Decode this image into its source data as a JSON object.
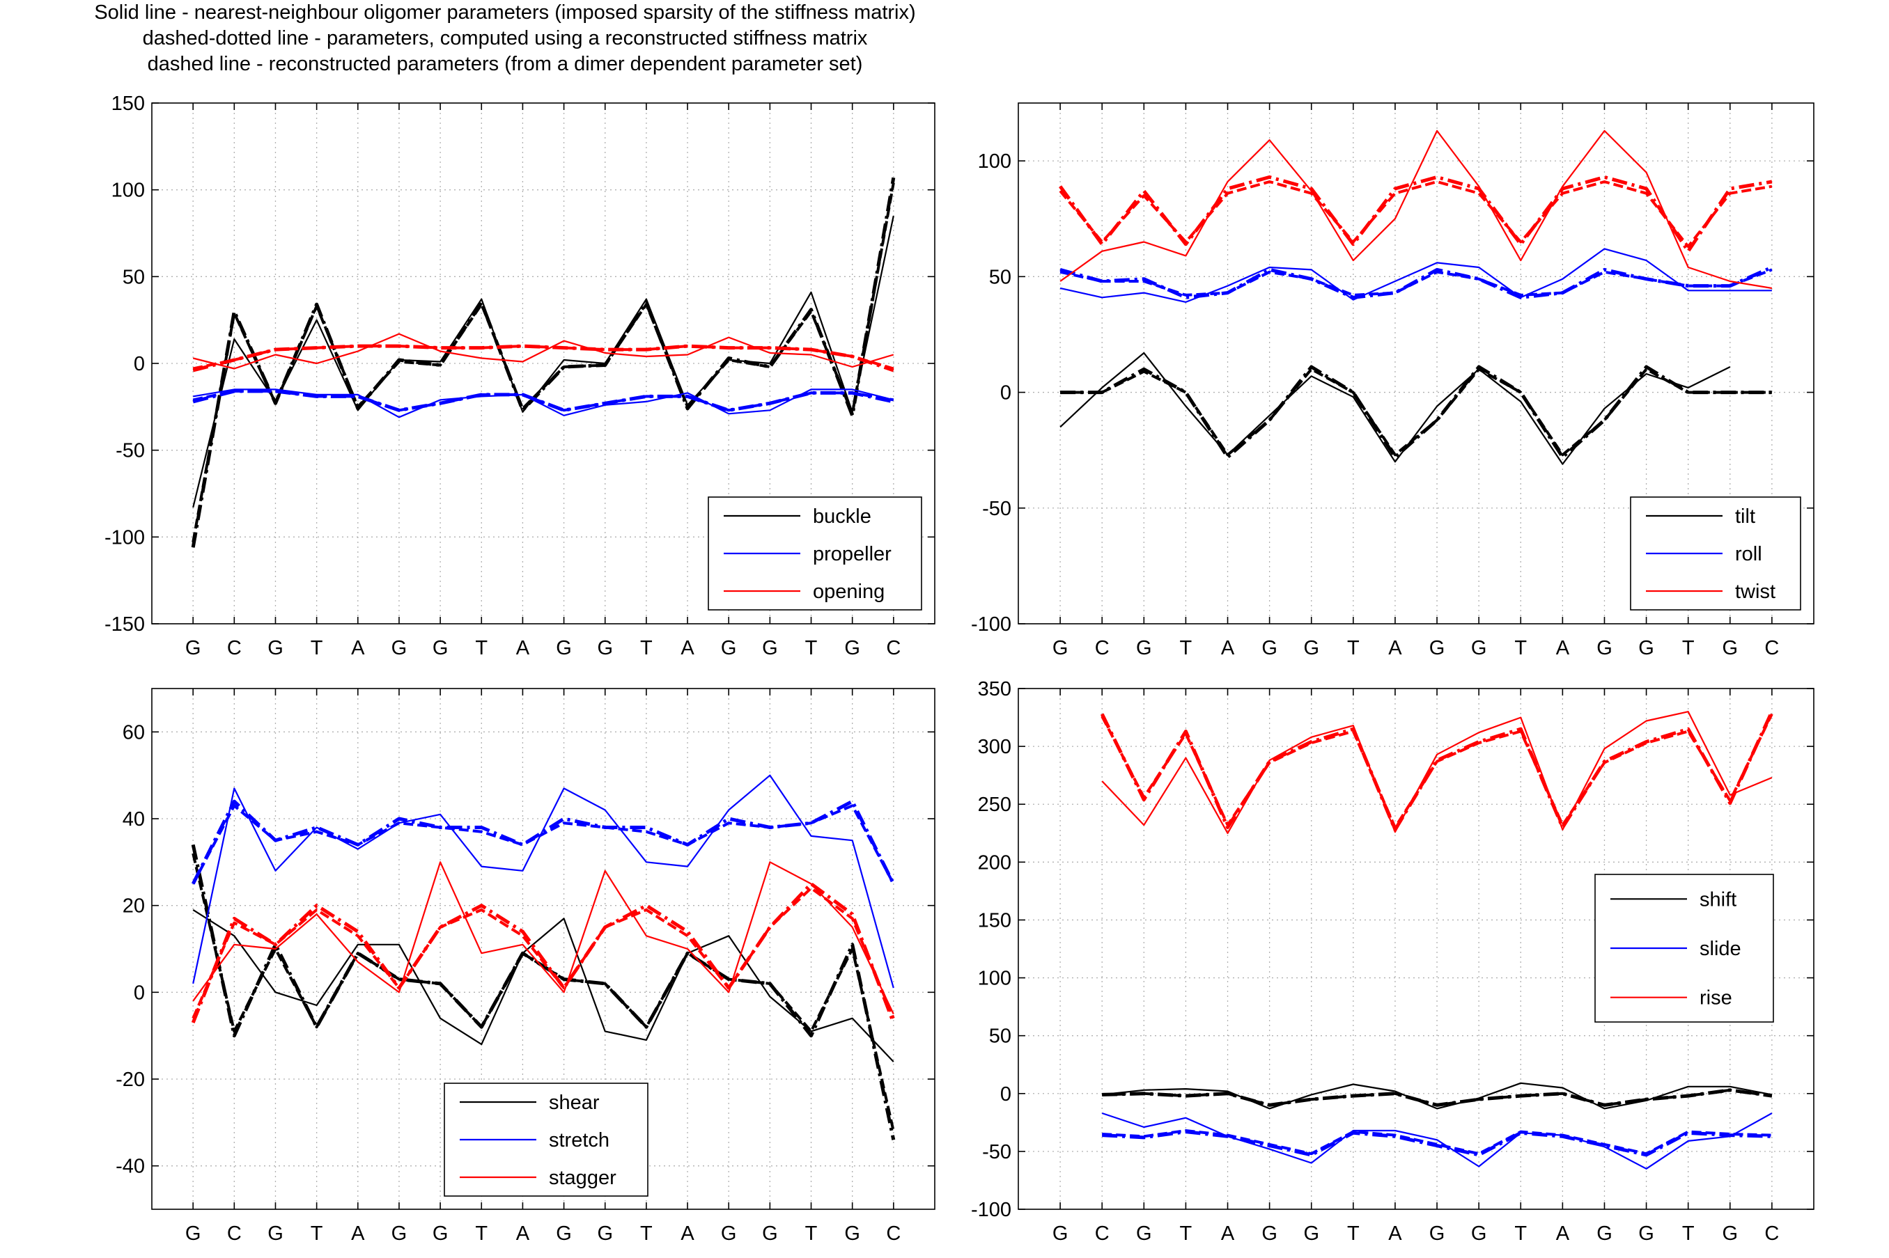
{
  "title_lines": [
    "Solid line - nearest-neighbour oligomer parameters (imposed sparsity of the stiffness matrix)",
    "dashed-dotted line - parameters, computed using a reconstructed stiffness matrix",
    "dashed line - reconstructed parameters (from a dimer dependent parameter set)"
  ],
  "colors": {
    "black": "#000000",
    "blue": "#0000ff",
    "red": "#ff0000",
    "grid": "#b0b0b0"
  },
  "chart_data": [
    {
      "type": "line",
      "panel": "top-left",
      "categories": [
        "G",
        "C",
        "G",
        "T",
        "A",
        "G",
        "G",
        "T",
        "A",
        "G",
        "G",
        "T",
        "A",
        "G",
        "G",
        "T",
        "G",
        "C"
      ],
      "ylim": [
        -150,
        150
      ],
      "yticks": [
        -150,
        -100,
        -50,
        0,
        50,
        100,
        150
      ],
      "grid": true,
      "legend_position": "bottom-right",
      "series": [
        {
          "name": "buckle",
          "color": "black",
          "style": "solid",
          "values": [
            -83,
            14,
            -22,
            25,
            -27,
            2,
            1,
            37,
            -28,
            2,
            0,
            37,
            -24,
            2,
            0,
            41,
            -28,
            85
          ]
        },
        {
          "name": "",
          "color": "black",
          "style": "dashdot",
          "values": [
            -106,
            30,
            -23,
            34,
            -26,
            2,
            -1,
            35,
            -27,
            -2,
            -1,
            35,
            -26,
            3,
            -2,
            31,
            -30,
            107
          ]
        },
        {
          "name": "",
          "color": "black",
          "style": "dashed",
          "values": [
            -103,
            29,
            -23,
            33,
            -25,
            1,
            -1,
            34,
            -26,
            -2,
            -1,
            34,
            -25,
            2,
            -2,
            30,
            -29,
            104
          ]
        },
        {
          "name": "propeller",
          "color": "blue",
          "style": "solid",
          "values": [
            -19,
            -15,
            -15,
            -18,
            -18,
            -31,
            -21,
            -19,
            -18,
            -30,
            -24,
            -22,
            -17,
            -29,
            -27,
            -15,
            -15,
            -21
          ]
        },
        {
          "name": "",
          "color": "blue",
          "style": "dashdot",
          "values": [
            -22,
            -16,
            -16,
            -19,
            -19,
            -27,
            -23,
            -18,
            -18,
            -27,
            -23,
            -19,
            -19,
            -27,
            -23,
            -17,
            -17,
            -22
          ]
        },
        {
          "name": "",
          "color": "blue",
          "style": "dashed",
          "values": [
            -21,
            -16,
            -16,
            -19,
            -19,
            -27,
            -23,
            -18,
            -18,
            -27,
            -23,
            -19,
            -19,
            -27,
            -23,
            -17,
            -17,
            -21
          ]
        },
        {
          "name": "opening",
          "color": "red",
          "style": "solid",
          "values": [
            3,
            -3,
            5,
            0,
            7,
            17,
            7,
            3,
            1,
            13,
            6,
            4,
            5,
            15,
            6,
            5,
            -2,
            5
          ]
        },
        {
          "name": "",
          "color": "red",
          "style": "dashdot",
          "values": [
            -4,
            2,
            8,
            9,
            10,
            10,
            9,
            9,
            10,
            9,
            8,
            8,
            10,
            9,
            9,
            8,
            4,
            -4
          ]
        },
        {
          "name": "",
          "color": "red",
          "style": "dashed",
          "values": [
            -3,
            2,
            8,
            9,
            10,
            10,
            9,
            9,
            10,
            9,
            8,
            8,
            10,
            9,
            9,
            8,
            4,
            -3
          ]
        }
      ]
    },
    {
      "type": "line",
      "panel": "top-right",
      "categories": [
        "G",
        "C",
        "G",
        "T",
        "A",
        "G",
        "G",
        "T",
        "A",
        "G",
        "G",
        "T",
        "A",
        "G",
        "G",
        "T",
        "G",
        "C"
      ],
      "ylim": [
        -100,
        125
      ],
      "yticks": [
        -100,
        -50,
        0,
        50,
        100
      ],
      "grid": true,
      "legend_position": "bottom-right",
      "series": [
        {
          "name": "tilt",
          "color": "black",
          "style": "solid",
          "values": [
            -15,
            2,
            17,
            -6,
            -27,
            -10,
            7,
            -2,
            -30,
            -6,
            10,
            -4,
            -31,
            -7,
            8,
            2,
            11,
            null
          ]
        },
        {
          "name": "",
          "color": "black",
          "style": "dashdot",
          "values": [
            0,
            0,
            10,
            0,
            -28,
            -12,
            11,
            0,
            -28,
            -12,
            11,
            0,
            -28,
            -12,
            11,
            0,
            0,
            0
          ]
        },
        {
          "name": "",
          "color": "black",
          "style": "dashed",
          "values": [
            0,
            0,
            9,
            0,
            -27,
            -12,
            10,
            0,
            -27,
            -12,
            10,
            0,
            -27,
            -12,
            10,
            0,
            0,
            0
          ]
        },
        {
          "name": "roll",
          "color": "blue",
          "style": "solid",
          "values": [
            45,
            41,
            43,
            39,
            46,
            54,
            53,
            40,
            48,
            56,
            54,
            41,
            49,
            62,
            57,
            44,
            44,
            44
          ]
        },
        {
          "name": "",
          "color": "blue",
          "style": "dashdot",
          "values": [
            53,
            48,
            49,
            41,
            43,
            53,
            49,
            41,
            43,
            53,
            49,
            41,
            43,
            53,
            49,
            46,
            46,
            54
          ]
        },
        {
          "name": "",
          "color": "blue",
          "style": "dashed",
          "values": [
            52,
            48,
            48,
            42,
            43,
            52,
            49,
            42,
            43,
            52,
            49,
            42,
            43,
            52,
            49,
            46,
            46,
            53
          ]
        },
        {
          "name": "twist",
          "color": "red",
          "style": "solid",
          "values": [
            48,
            61,
            65,
            59,
            91,
            109,
            87,
            57,
            75,
            113,
            89,
            57,
            89,
            113,
            95,
            54,
            48,
            45
          ]
        },
        {
          "name": "",
          "color": "red",
          "style": "dashdot",
          "values": [
            89,
            64,
            87,
            64,
            88,
            93,
            88,
            64,
            88,
            93,
            88,
            64,
            88,
            93,
            88,
            61,
            88,
            91
          ]
        },
        {
          "name": "",
          "color": "red",
          "style": "dashed",
          "values": [
            87,
            65,
            85,
            65,
            86,
            91,
            86,
            65,
            86,
            91,
            86,
            65,
            86,
            91,
            86,
            63,
            86,
            89
          ]
        }
      ]
    },
    {
      "type": "line",
      "panel": "bottom-left",
      "categories": [
        "G",
        "C",
        "G",
        "T",
        "A",
        "G",
        "G",
        "T",
        "A",
        "G",
        "G",
        "T",
        "A",
        "G",
        "G",
        "T",
        "G",
        "C"
      ],
      "ylim": [
        -50,
        70
      ],
      "yticks": [
        -40,
        -20,
        0,
        20,
        40,
        60
      ],
      "grid": true,
      "legend_position": "bottom-center",
      "series": [
        {
          "name": "shear",
          "color": "black",
          "style": "solid",
          "values": [
            19,
            13,
            0,
            -3,
            11,
            11,
            -6,
            -12,
            9,
            17,
            -9,
            -11,
            9,
            13,
            -1,
            -9,
            -6,
            -16
          ]
        },
        {
          "name": "",
          "color": "black",
          "style": "dashdot",
          "values": [
            34,
            -10,
            11,
            -8,
            9,
            3,
            2,
            -8,
            9,
            3,
            2,
            -8,
            9,
            3,
            2,
            -10,
            11,
            -34
          ]
        },
        {
          "name": "",
          "color": "black",
          "style": "dashed",
          "values": [
            32,
            -9,
            10,
            -8,
            9,
            3,
            2,
            -8,
            9,
            3,
            2,
            -8,
            9,
            3,
            2,
            -9,
            10,
            -32
          ]
        },
        {
          "name": "stretch",
          "color": "blue",
          "style": "solid",
          "values": [
            2,
            47,
            28,
            38,
            33,
            39,
            41,
            29,
            28,
            47,
            42,
            30,
            29,
            42,
            50,
            36,
            35,
            1
          ]
        },
        {
          "name": "",
          "color": "blue",
          "style": "dashdot",
          "values": [
            25,
            44,
            35,
            38,
            34,
            40,
            38,
            38,
            34,
            40,
            38,
            38,
            34,
            40,
            38,
            39,
            44,
            25
          ]
        },
        {
          "name": "",
          "color": "blue",
          "style": "dashed",
          "values": [
            25,
            43,
            35,
            37,
            34,
            39,
            38,
            37,
            34,
            39,
            38,
            37,
            34,
            39,
            38,
            39,
            43,
            25
          ]
        },
        {
          "name": "stagger",
          "color": "red",
          "style": "solid",
          "values": [
            -2,
            11,
            10,
            18,
            7,
            0,
            30,
            9,
            11,
            0,
            28,
            13,
            10,
            0,
            30,
            25,
            15,
            -5
          ]
        },
        {
          "name": "",
          "color": "red",
          "style": "dashdot",
          "values": [
            -7,
            17,
            11,
            20,
            14,
            1,
            15,
            20,
            14,
            1,
            15,
            20,
            14,
            1,
            15,
            25,
            18,
            -7
          ]
        },
        {
          "name": "",
          "color": "red",
          "style": "dashed",
          "values": [
            -6,
            16,
            11,
            19,
            13,
            1,
            15,
            19,
            13,
            1,
            15,
            19,
            13,
            1,
            15,
            24,
            17,
            -6
          ]
        }
      ]
    },
    {
      "type": "line",
      "panel": "bottom-right",
      "categories": [
        "G",
        "C",
        "G",
        "T",
        "A",
        "G",
        "G",
        "T",
        "A",
        "G",
        "G",
        "T",
        "A",
        "G",
        "G",
        "T",
        "G",
        "C"
      ],
      "ylim": [
        -100,
        350
      ],
      "yticks": [
        -100,
        -50,
        0,
        50,
        100,
        150,
        200,
        250,
        300,
        350
      ],
      "grid": true,
      "legend_position": "right",
      "series": [
        {
          "name": "shift",
          "color": "black",
          "style": "solid",
          "values": [
            null,
            -1,
            3,
            4,
            2,
            -13,
            -1,
            8,
            2,
            -13,
            -4,
            9,
            5,
            -13,
            -6,
            6,
            6,
            -1
          ]
        },
        {
          "name": "",
          "color": "black",
          "style": "dashdot",
          "values": [
            null,
            -1,
            0,
            -2,
            0,
            -10,
            -5,
            -2,
            0,
            -10,
            -5,
            -2,
            0,
            -10,
            -5,
            -2,
            3,
            -2
          ]
        },
        {
          "name": "",
          "color": "black",
          "style": "dashed",
          "values": [
            null,
            -1,
            0,
            -2,
            0,
            -10,
            -5,
            -2,
            0,
            -10,
            -5,
            -2,
            0,
            -10,
            -5,
            -2,
            3,
            -2
          ]
        },
        {
          "name": "slide",
          "color": "blue",
          "style": "solid",
          "values": [
            null,
            -17,
            -29,
            -21,
            -37,
            -48,
            -60,
            -32,
            -32,
            -40,
            -63,
            -34,
            -36,
            -46,
            -65,
            -41,
            -37,
            -17
          ]
        },
        {
          "name": "",
          "color": "blue",
          "style": "dashdot",
          "values": [
            null,
            -36,
            -38,
            -33,
            -37,
            -45,
            -53,
            -34,
            -37,
            -45,
            -53,
            -34,
            -37,
            -45,
            -53,
            -34,
            -36,
            -37
          ]
        },
        {
          "name": "",
          "color": "blue",
          "style": "dashed",
          "values": [
            null,
            -35,
            -37,
            -32,
            -36,
            -44,
            -52,
            -33,
            -36,
            -44,
            -52,
            -33,
            -36,
            -44,
            -52,
            -33,
            -35,
            -36
          ]
        },
        {
          "name": "rise",
          "color": "red",
          "style": "solid",
          "values": [
            null,
            270,
            232,
            290,
            225,
            288,
            308,
            318,
            226,
            293,
            312,
            325,
            228,
            298,
            322,
            330,
            258,
            273
          ]
        },
        {
          "name": "",
          "color": "red",
          "style": "dashdot",
          "values": [
            null,
            328,
            254,
            313,
            230,
            287,
            304,
            315,
            228,
            288,
            304,
            315,
            230,
            287,
            304,
            315,
            251,
            330
          ]
        },
        {
          "name": "",
          "color": "red",
          "style": "dashed",
          "values": [
            null,
            326,
            256,
            311,
            232,
            286,
            303,
            313,
            230,
            287,
            303,
            313,
            232,
            286,
            303,
            313,
            253,
            328
          ]
        }
      ]
    }
  ]
}
